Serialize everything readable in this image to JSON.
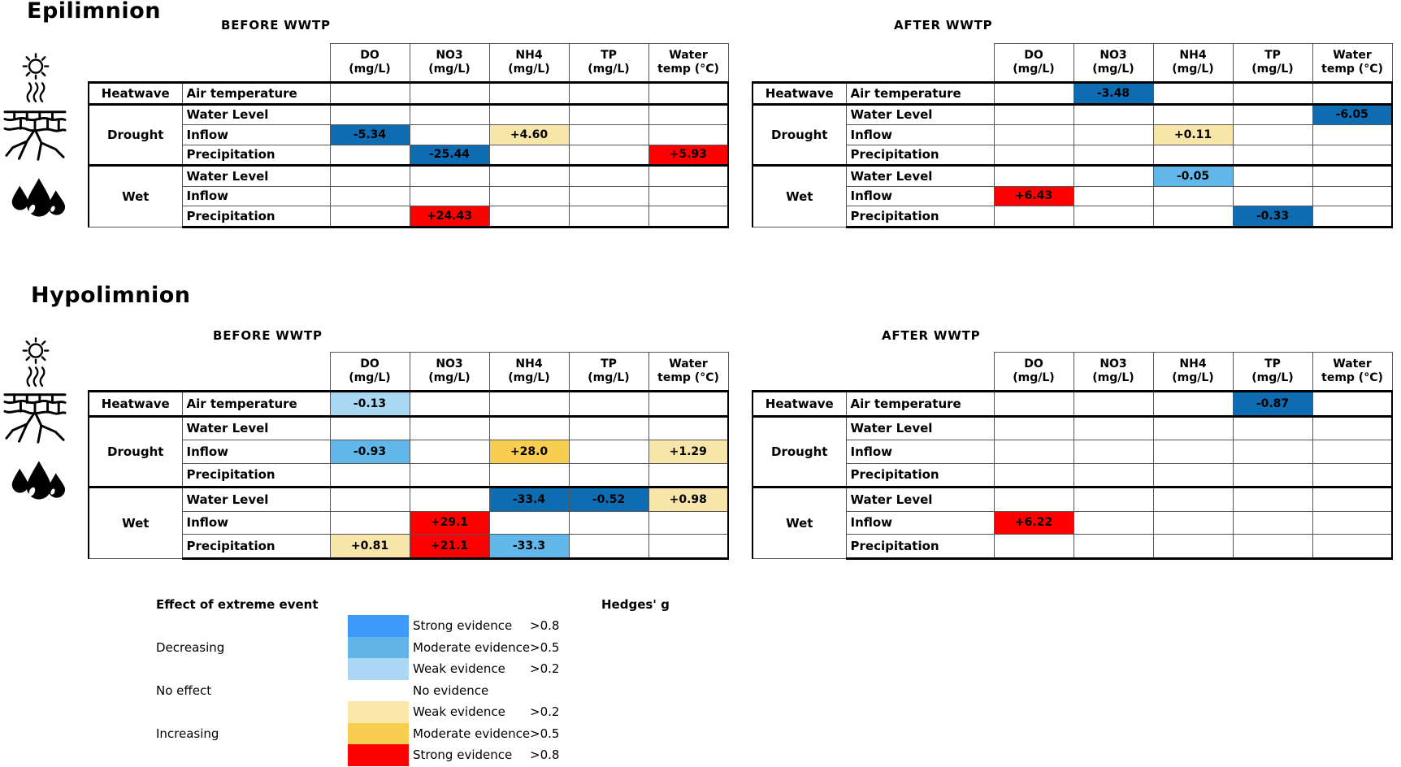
{
  "sections": {
    "epilimnion": {
      "title": "Epilimnion"
    },
    "hypolimnion": {
      "title": "Hypolimnion"
    }
  },
  "icons": [
    {
      "name": "heatwave-icon",
      "depicts": "sun with heat waves",
      "row_group": "Heatwave"
    },
    {
      "name": "drought-icon",
      "depicts": "cracked dry earth",
      "row_group": "Drought"
    },
    {
      "name": "wet-icon",
      "depicts": "water drops",
      "row_group": "Wet"
    }
  ],
  "chart_data": {
    "type": "heatmap",
    "columns": [
      {
        "line1": "DO",
        "line2": "(mg/L)"
      },
      {
        "line1": "NO3",
        "line2": "(mg/L)"
      },
      {
        "line1": "NH4",
        "line2": "(mg/L)"
      },
      {
        "line1": "TP",
        "line2": "(mg/L)"
      },
      {
        "line1": "Water",
        "line2": "temp (°C)"
      }
    ],
    "row_groups": [
      {
        "label": "Heatwave",
        "rows": [
          "Air temperature"
        ]
      },
      {
        "label": "Drought",
        "rows": [
          "Water Level",
          "Inflow",
          "Precipitation"
        ]
      },
      {
        "label": "Wet",
        "rows": [
          "Water Level",
          "Inflow",
          "Precipitation"
        ]
      }
    ],
    "cell_colors": {
      "dec_strong": "#0E6CB2",
      "dec_moderate": "#62B7EA",
      "dec_weak": "#A9D8F2",
      "inc_weak": "#F8E5AA",
      "inc_moderate": "#F8CE50",
      "inc_strong": "#FE0000"
    },
    "tables": [
      {
        "section": "Epilimnion",
        "period": "BEFORE WWTP",
        "values": [
          [
            null,
            null,
            null,
            null,
            null
          ],
          [
            null,
            null,
            null,
            null,
            null
          ],
          [
            {
              "v": "-5.34",
              "lvl": "dec_strong"
            },
            null,
            {
              "v": "+4.60",
              "lvl": "inc_weak"
            },
            null,
            null
          ],
          [
            null,
            {
              "v": "-25.44",
              "lvl": "dec_strong"
            },
            null,
            null,
            {
              "v": "+5.93",
              "lvl": "inc_strong"
            }
          ],
          [
            null,
            null,
            null,
            null,
            null
          ],
          [
            null,
            null,
            null,
            null,
            null
          ],
          [
            null,
            {
              "v": "+24.43",
              "lvl": "inc_strong"
            },
            null,
            null,
            null
          ]
        ]
      },
      {
        "section": "Epilimnion",
        "period": "AFTER WWTP",
        "values": [
          [
            null,
            {
              "v": "-3.48",
              "lvl": "dec_strong"
            },
            null,
            null,
            null
          ],
          [
            null,
            null,
            null,
            null,
            {
              "v": "-6.05",
              "lvl": "dec_strong"
            }
          ],
          [
            null,
            null,
            {
              "v": "+0.11",
              "lvl": "inc_weak"
            },
            null,
            null
          ],
          [
            null,
            null,
            null,
            null,
            null
          ],
          [
            null,
            null,
            {
              "v": "-0.05",
              "lvl": "dec_moderate"
            },
            null,
            null
          ],
          [
            {
              "v": "+6.43",
              "lvl": "inc_strong"
            },
            null,
            null,
            null,
            null
          ],
          [
            null,
            null,
            null,
            {
              "v": "-0.33",
              "lvl": "dec_strong"
            },
            null
          ]
        ]
      },
      {
        "section": "Hypolimnion",
        "period": "BEFORE WWTP",
        "values": [
          [
            {
              "v": "-0.13",
              "lvl": "dec_weak"
            },
            null,
            null,
            null,
            null
          ],
          [
            null,
            null,
            null,
            null,
            null
          ],
          [
            {
              "v": "-0.93",
              "lvl": "dec_moderate"
            },
            null,
            {
              "v": "+28.0",
              "lvl": "inc_moderate"
            },
            null,
            {
              "v": "+1.29",
              "lvl": "inc_weak"
            }
          ],
          [
            null,
            null,
            null,
            null,
            null
          ],
          [
            null,
            null,
            {
              "v": "-33.4",
              "lvl": "dec_strong"
            },
            {
              "v": "-0.52",
              "lvl": "dec_strong"
            },
            {
              "v": "+0.98",
              "lvl": "inc_weak"
            }
          ],
          [
            null,
            {
              "v": "+29.1",
              "lvl": "inc_strong"
            },
            null,
            null,
            null
          ],
          [
            {
              "v": "+0.81",
              "lvl": "inc_weak"
            },
            {
              "v": "+21.1",
              "lvl": "inc_strong"
            },
            {
              "v": "-33.3",
              "lvl": "dec_moderate"
            },
            null,
            null
          ]
        ]
      },
      {
        "section": "Hypolimnion",
        "period": "AFTER WWTP",
        "values": [
          [
            null,
            null,
            null,
            {
              "v": "-0.87",
              "lvl": "dec_strong"
            },
            null
          ],
          [
            null,
            null,
            null,
            null,
            null
          ],
          [
            null,
            null,
            null,
            null,
            null
          ],
          [
            null,
            null,
            null,
            null,
            null
          ],
          [
            null,
            null,
            null,
            null,
            null
          ],
          [
            {
              "v": "+6.22",
              "lvl": "inc_strong"
            },
            null,
            null,
            null,
            null
          ],
          [
            null,
            null,
            null,
            null,
            null
          ]
        ]
      }
    ]
  },
  "legend": {
    "effect_header": "Effect of extreme event",
    "hedges_header": "Hedges' g",
    "decreasing_label": "Decreasing",
    "no_effect_label": "No effect",
    "increasing_label": "Increasing",
    "rows": [
      {
        "evidence": "Strong evidence",
        "g": ">0.8",
        "color": "#3E9AF9",
        "swatch": true
      },
      {
        "evidence": "Moderate evidence",
        "g": ">0.5",
        "color": "#63B5E9",
        "swatch": true
      },
      {
        "evidence": "Weak evidence",
        "g": ">0.2",
        "color": "#ABD7F4",
        "swatch": true
      },
      {
        "evidence": "No evidence",
        "g": "",
        "color": "#FFFFFF",
        "swatch": false
      },
      {
        "evidence": "Weak evidence",
        "g": ">0.2",
        "color": "#FAE6A9",
        "swatch": true
      },
      {
        "evidence": "Moderate evidence",
        "g": ">0.5",
        "color": "#F8CE50",
        "swatch": true
      },
      {
        "evidence": "Strong evidence",
        "g": ">0.8",
        "color": "#FE0000",
        "swatch": true
      }
    ]
  }
}
